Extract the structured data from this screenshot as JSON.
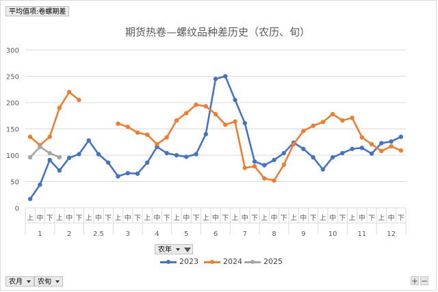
{
  "pivot": {
    "value_field": "平均值项:卷螺期差",
    "column_field": "农年",
    "row_fields": [
      "农月",
      "农旬"
    ]
  },
  "chart_data": {
    "type": "line",
    "title": "期货热卷—螺纹品种差历史（农历、旬）",
    "ylim": [
      0,
      300
    ],
    "yticks": [
      0,
      50,
      100,
      150,
      200,
      250,
      300
    ],
    "grid": true,
    "legend_position": "bottom",
    "month_groups": [
      {
        "label": "1",
        "subs": [
          "上",
          "中",
          "下"
        ]
      },
      {
        "label": "2",
        "subs": [
          "上",
          "中",
          "下"
        ]
      },
      {
        "label": "2.5",
        "subs": [
          "上",
          "中",
          "下"
        ]
      },
      {
        "label": "3",
        "subs": [
          "上",
          "中",
          "下"
        ]
      },
      {
        "label": "4",
        "subs": [
          "上",
          "中",
          "下"
        ]
      },
      {
        "label": "5",
        "subs": [
          "上",
          "中",
          "下"
        ]
      },
      {
        "label": "6",
        "subs": [
          "上",
          "中",
          "下"
        ]
      },
      {
        "label": "7",
        "subs": [
          "上",
          "中",
          "下"
        ]
      },
      {
        "label": "8",
        "subs": [
          "上",
          "中",
          "下"
        ]
      },
      {
        "label": "9",
        "subs": [
          "上",
          "中",
          "下"
        ]
      },
      {
        "label": "10",
        "subs": [
          "上",
          "中",
          "下"
        ]
      },
      {
        "label": "11",
        "subs": [
          "上",
          "中",
          "下"
        ]
      },
      {
        "label": "12",
        "subs": [
          "上",
          "中",
          "下"
        ]
      }
    ],
    "series": [
      {
        "name": "2023",
        "color": "#4472c4",
        "values": [
          17,
          44,
          91,
          71,
          95,
          102,
          128,
          102,
          86,
          60,
          66,
          65,
          86,
          116,
          104,
          100,
          97,
          102,
          140,
          245,
          250,
          205,
          161,
          88,
          81,
          91,
          104,
          124,
          112,
          96,
          73,
          96,
          104,
          112,
          114,
          103,
          123,
          126,
          135
        ]
      },
      {
        "name": "2024",
        "color": "#ed7d31",
        "values": [
          135,
          119,
          135,
          190,
          220,
          205,
          null,
          null,
          null,
          160,
          154,
          143,
          139,
          121,
          134,
          166,
          180,
          196,
          193,
          178,
          158,
          164,
          76,
          79,
          56,
          52,
          82,
          121,
          146,
          156,
          163,
          178,
          166,
          171,
          134,
          121,
          108,
          117,
          109
        ]
      },
      {
        "name": "2025",
        "color": "#a5a5a5",
        "values": [
          96,
          116,
          104,
          96,
          null,
          null,
          null,
          null,
          null,
          null,
          null,
          null,
          null,
          null,
          null,
          null,
          null,
          null,
          null,
          null,
          null,
          null,
          null,
          null,
          null,
          null,
          null,
          null,
          null,
          null,
          null,
          null,
          null,
          null,
          null,
          null,
          null,
          null,
          null
        ]
      }
    ]
  }
}
